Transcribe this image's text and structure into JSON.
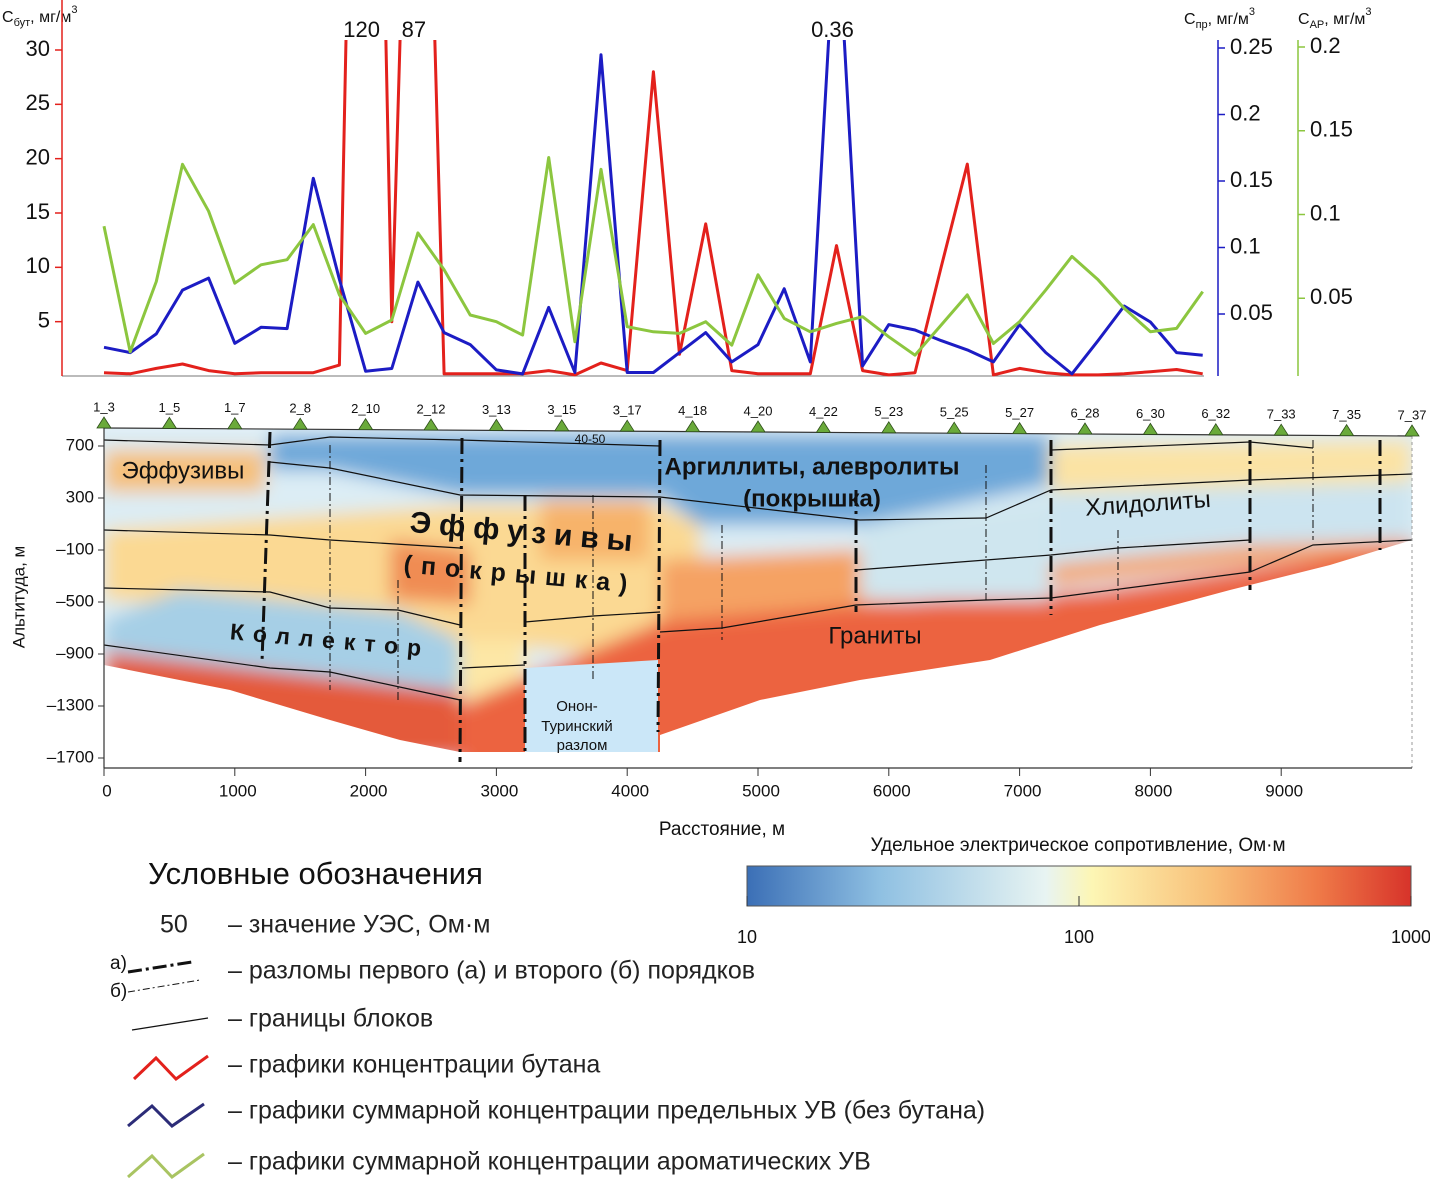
{
  "chart_data": [
    {
      "type": "line",
      "x": [
        0,
        200,
        400,
        600,
        800,
        1000,
        1200,
        1400,
        1600,
        1800,
        2000,
        2200,
        2400,
        2600,
        2800,
        3000,
        3200,
        3400,
        3600,
        3800,
        4000,
        4200,
        4400,
        4600,
        4800,
        5000,
        5200,
        5400,
        5600,
        5800,
        6000,
        6200,
        6400,
        6600,
        6800,
        7000,
        7200,
        7400,
        7600,
        7800,
        8000,
        8200,
        8400
      ],
      "xlim": [
        0,
        10000
      ],
      "ylim": [
        0,
        30
      ],
      "yticks": [
        5,
        10,
        15,
        20,
        25,
        30
      ],
      "y2lim": [
        0,
        0.25
      ],
      "y2ticks": [
        0.05,
        0.1,
        0.15,
        0.2,
        0.25
      ],
      "y3lim": [
        0,
        0.2
      ],
      "y3ticks": [
        0.05,
        0.1,
        0.15,
        0.2
      ],
      "y_label": {
        "symbol": "С",
        "sub": "бут",
        "unit": ", мг/м",
        "sup": "3"
      },
      "y2_label": {
        "symbol": "С",
        "sub": "пр",
        "unit": ", мг/м",
        "sup": "3"
      },
      "y3_label": {
        "symbol": "С",
        "sub": "АР",
        "unit": ", мг/м",
        "sup": "3"
      },
      "series": [
        {
          "name": "Бутан",
          "color": "#e3211c",
          "axis": "y",
          "values": [
            0.3,
            0.2,
            0.7,
            1.1,
            0.5,
            0.2,
            0.3,
            0.3,
            0.3,
            1.0,
            120,
            5,
            87,
            0.2,
            0.2,
            0.2,
            0.2,
            0.5,
            0.1,
            1.2,
            0.5,
            28,
            2,
            14,
            0.5,
            0.2,
            0.2,
            0.2,
            12,
            0.5,
            0.1,
            0.3,
            10,
            19.5,
            0.1,
            0.7,
            0.3,
            0.1,
            0.1,
            0.2,
            0.4,
            0.6,
            0.2
          ],
          "value_labels": [
            null,
            null,
            null,
            null,
            null,
            null,
            null,
            null,
            null,
            null,
            "120",
            null,
            "87",
            null,
            null,
            null,
            null,
            null,
            null,
            null,
            null,
            null,
            null,
            null,
            null,
            null,
            null,
            null,
            null,
            null,
            null,
            null,
            null,
            null,
            null,
            null,
            null,
            null,
            null,
            null,
            null,
            null,
            null
          ]
        },
        {
          "name": "Предельные УВ",
          "color": "#1c1cc4",
          "axis": "y2",
          "values": [
            0.025,
            0.021,
            0.035,
            0.068,
            0.077,
            0.028,
            0.04,
            0.039,
            0.152,
            0.076,
            0.007,
            0.009,
            0.074,
            0.036,
            0.027,
            0.008,
            0.005,
            0.055,
            0.006,
            0.245,
            0.006,
            0.006,
            0.021,
            0.036,
            0.014,
            0.027,
            0.069,
            0.014,
            0.36,
            0.011,
            0.042,
            0.038,
            0.03,
            0.023,
            0.014,
            0.042,
            0.021,
            0.005,
            0.03,
            0.056,
            0.044,
            0.021,
            0.019
          ],
          "value_labels": [
            null,
            null,
            null,
            null,
            null,
            null,
            null,
            null,
            null,
            null,
            null,
            null,
            null,
            null,
            null,
            null,
            null,
            null,
            null,
            null,
            null,
            null,
            null,
            null,
            null,
            null,
            null,
            null,
            "0.36",
            null,
            null,
            null,
            null,
            null,
            null,
            null,
            null,
            null,
            null,
            null,
            null,
            null,
            null
          ]
        },
        {
          "name": "Ароматические УВ",
          "color": "#8cc63f",
          "axis": "y3",
          "values": [
            0.093,
            0.018,
            0.06,
            0.13,
            0.102,
            0.059,
            0.07,
            0.073,
            0.094,
            0.052,
            0.029,
            0.037,
            0.089,
            0.067,
            0.04,
            0.036,
            0.028,
            0.134,
            0.024,
            0.127,
            0.033,
            0.03,
            0.029,
            0.036,
            0.022,
            0.064,
            0.038,
            0.03,
            0.035,
            0.039,
            0.027,
            0.016,
            0.034,
            0.052,
            0.023,
            0.036,
            0.055,
            0.075,
            0.061,
            0.044,
            0.03,
            0.032,
            0.054
          ]
        }
      ]
    },
    {
      "type": "section",
      "x_label": "Расстояние, м",
      "y_label": "Альтитуда, м",
      "xlim": [
        0,
        10000
      ],
      "xticks": [
        0,
        1000,
        2000,
        3000,
        4000,
        5000,
        6000,
        7000,
        8000,
        9000
      ],
      "ylim": [
        -1780,
        860
      ],
      "yticks": [
        700,
        300,
        {
          "value": -100,
          "label": "–100"
        },
        {
          "value": -500,
          "label": "–500"
        },
        {
          "value": -900,
          "label": "–900"
        },
        {
          "value": -1300,
          "label": "–1300"
        },
        {
          "value": -1700,
          "label": "–1700"
        }
      ],
      "stations": {
        "names": [
          "1_3",
          "1_5",
          "1_7",
          "2_8",
          "2_10",
          "2_12",
          "3_13",
          "3_15",
          "3_17",
          "4_18",
          "4_20",
          "4_22",
          "5_23",
          "5_25",
          "5_27",
          "6_28",
          "6_30",
          "6_32",
          "7_33",
          "7_35",
          "7_37"
        ],
        "x": [
          0,
          500,
          1000,
          1500,
          2000,
          2500,
          3000,
          3500,
          4000,
          4500,
          5000,
          5500,
          6000,
          6500,
          7000,
          7500,
          8000,
          8500,
          9000,
          9500,
          10000
        ],
        "color": "#6aaa3a"
      },
      "labels": [
        "Эффузивы",
        "Аргиллиты, алевролиты",
        "(покрышка)",
        "Эффузивы",
        "(покрышка)",
        "Хлидолиты",
        "Коллектор",
        "Граниты",
        "Онон-",
        "Туринский",
        "разлом",
        "40-50"
      ],
      "colorbar": {
        "title": "Удельное электрическое сопротивление, Ом·м",
        "lim": [
          10,
          1000
        ],
        "ticks": [
          10,
          100,
          1000
        ],
        "log": true
      }
    }
  ],
  "legend": {
    "title": "Условные обозначения",
    "uez_value": "50",
    "fault_a": "а)",
    "fault_b": "б)",
    "items": [
      "– значение УЭС,  Ом·м",
      "– разломы первого (а) и второго (б) порядков",
      "– границы блоков",
      "– графики концентрации бутана",
      "– графики суммарной концентрации предельных УВ (без бутана)",
      "– графики суммарной концентрации ароматических УВ"
    ]
  }
}
